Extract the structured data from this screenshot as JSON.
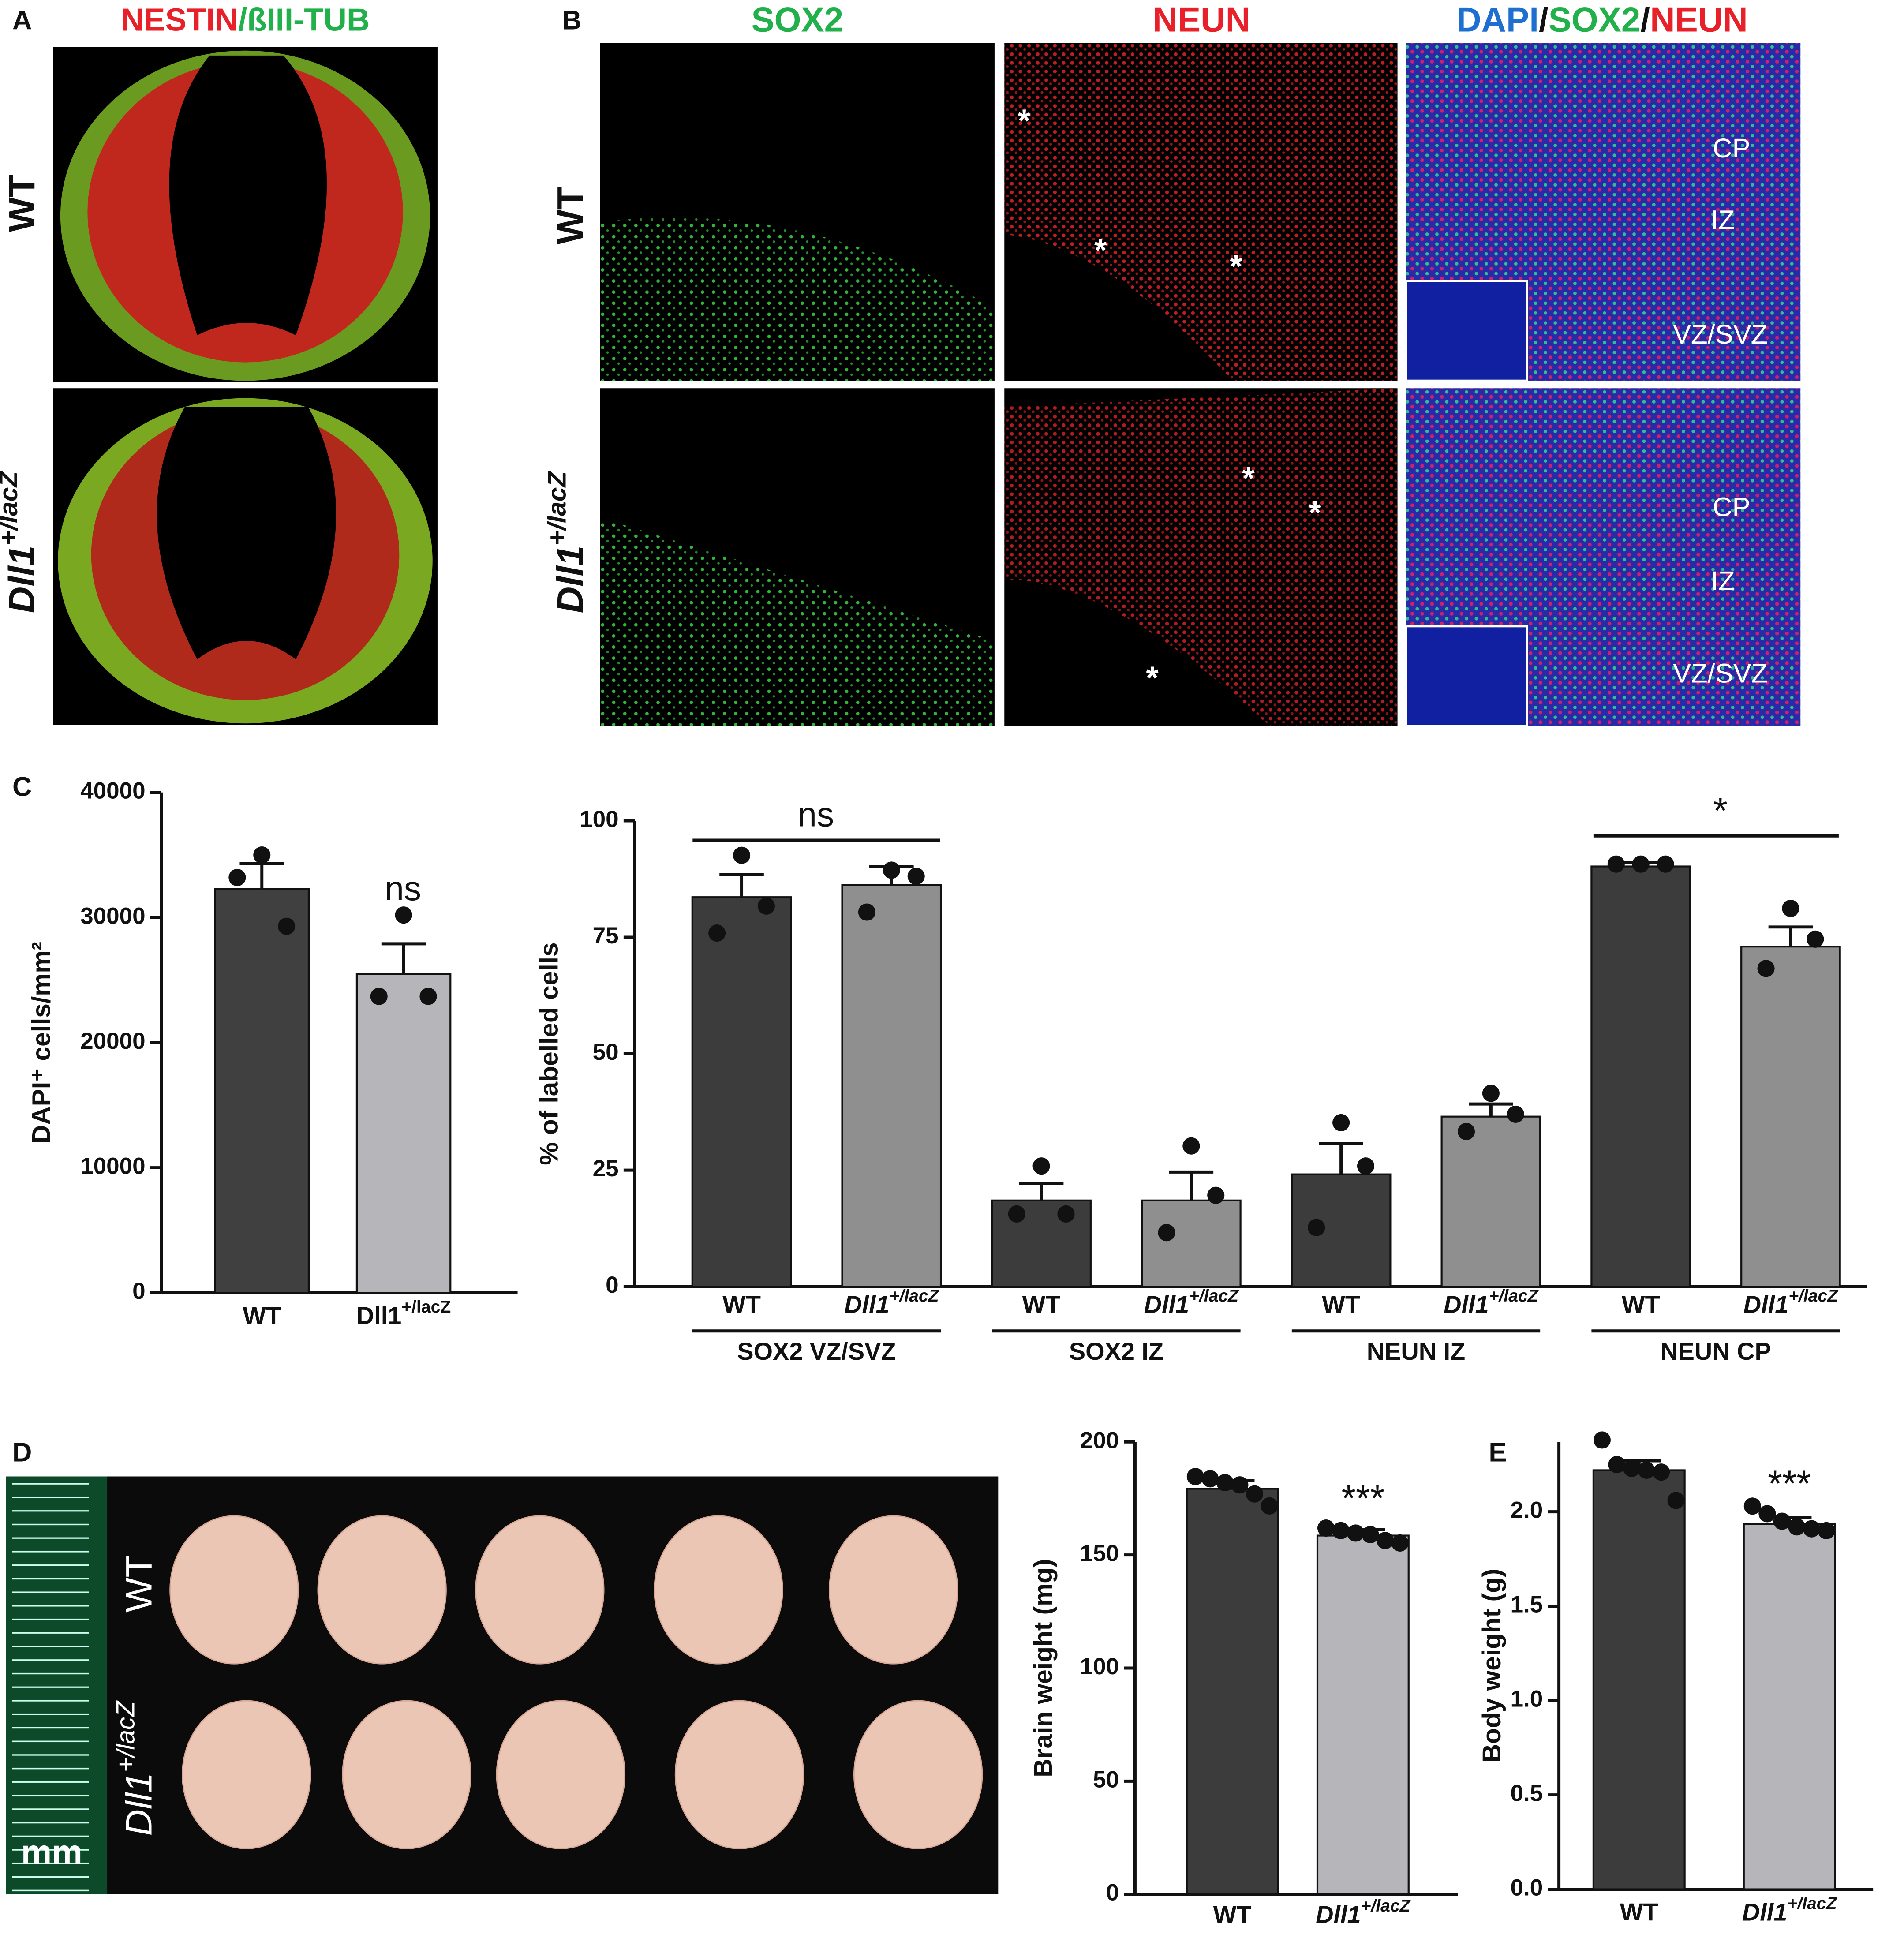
{
  "figure": {
    "panel_a": {
      "letter": "A",
      "title": [
        {
          "text": "NESTIN",
          "color": "#e8202a"
        },
        {
          "text": "/ßIII-TUB",
          "color": "#22b04b"
        }
      ],
      "rows": [
        "WT",
        "Dll1+/lacZ"
      ]
    },
    "panel_b": {
      "letter": "B",
      "columns": [
        [
          {
            "text": "SOX2",
            "color": "#22b04b"
          }
        ],
        [
          {
            "text": "NEUN",
            "color": "#e8202a"
          }
        ],
        [
          {
            "text": "DAPI",
            "color": "#1f6fd0"
          },
          {
            "text": "/",
            "color": "#111111"
          },
          {
            "text": "SOX2",
            "color": "#22b04b"
          },
          {
            "text": "/",
            "color": "#111111"
          },
          {
            "text": "NEUN",
            "color": "#e8202a"
          }
        ]
      ],
      "rows": [
        "WT",
        "Dll1+/lacZ"
      ],
      "zones": [
        "CP",
        "IZ",
        "VZ/SVZ"
      ],
      "marker": "*"
    },
    "panel_c": {
      "letter": "C"
    },
    "panel_d": {
      "letter": "D",
      "rows": [
        "WT",
        "Dll1+/lacZ"
      ],
      "scale": "mm"
    },
    "panel_e": {
      "letter": "E"
    }
  },
  "chart_data": [
    {
      "type": "bar",
      "y_label": "DAPI⁺ cells/mm²",
      "categories": [
        "WT",
        "Dll1+/lacZ"
      ],
      "values": [
        32300,
        25500
      ],
      "errors": [
        2000,
        2400
      ],
      "points": [
        [
          35000,
          33200,
          29300
        ],
        [
          30200,
          23700,
          23700
        ]
      ],
      "colors": [
        "#404040",
        "#b5b5ba"
      ],
      "ylim": [
        0,
        40000
      ],
      "yticks": [
        0,
        10000,
        20000,
        30000,
        40000
      ],
      "annotations": [
        "ns"
      ]
    },
    {
      "type": "bar",
      "y_label": "% of labelled cells",
      "categories": [
        "WT",
        "Dll1+/lacZ",
        "WT",
        "Dll1+/lacZ",
        "WT",
        "Dll1+/lacZ",
        "WT",
        "Dll1+/lacZ"
      ],
      "groups": [
        "SOX2 VZ/SVZ",
        "SOX2 IZ",
        "NEUN IZ",
        "NEUN CP"
      ],
      "values": [
        83.6,
        86.2,
        18.5,
        18.5,
        24.1,
        36.5,
        90.2,
        73.0
      ],
      "errors": [
        4.8,
        4.0,
        3.7,
        6.1,
        6.6,
        2.7,
        0.8,
        4.2
      ],
      "points": [
        [
          92.6,
          75.9,
          81.7
        ],
        [
          89.4,
          80.4,
          88.1
        ],
        [
          25.9,
          15.6,
          15.6
        ],
        [
          30.2,
          11.6,
          19.6
        ],
        [
          35.2,
          12.7,
          25.9
        ],
        [
          41.5,
          33.3,
          37.0
        ],
        [
          90.7,
          90.7,
          90.7
        ],
        [
          81.2,
          68.3,
          74.6
        ]
      ],
      "colors": [
        "#3c3c3c",
        "#8f8f8f",
        "#3c3c3c",
        "#8f8f8f",
        "#3c3c3c",
        "#8f8f8f",
        "#3c3c3c",
        "#8f8f8f"
      ],
      "ylim": [
        0,
        100
      ],
      "yticks": [
        0,
        25,
        50,
        75,
        100
      ],
      "annotations": [
        "ns",
        "*"
      ]
    },
    {
      "type": "bar",
      "y_label": "Brain weight (mg)",
      "categories": [
        "WT",
        "Dll1+/lacZ"
      ],
      "values": [
        179.3,
        158.6
      ],
      "errors": [
        3.5,
        2.7
      ],
      "points": [
        [
          184.7,
          183.7,
          182.0,
          181.0,
          177.0,
          171.7
        ],
        [
          161.9,
          160.8,
          159.7,
          159.0,
          156.4,
          155.3
        ]
      ],
      "colors": [
        "#3c3c3c",
        "#b5b5ba"
      ],
      "ylim": [
        0,
        200
      ],
      "yticks": [
        0,
        50,
        100,
        150,
        200
      ],
      "annotations": [
        "***"
      ]
    },
    {
      "type": "bar",
      "y_label": "Body weight (g)",
      "categories": [
        "WT",
        "Dll1+/lacZ"
      ],
      "values": [
        2.22,
        1.935
      ],
      "errors": [
        0.05,
        0.035
      ],
      "points": [
        [
          2.38,
          2.25,
          2.23,
          2.22,
          2.21,
          2.06
        ],
        [
          2.03,
          1.99,
          1.95,
          1.92,
          1.91,
          1.9
        ]
      ],
      "colors": [
        "#3c3c3c",
        "#b5b5ba"
      ],
      "ylim": [
        0,
        2.37
      ],
      "yticks": [
        {
          "value": 0,
          "label": "0.0"
        },
        0.5,
        {
          "value": 1,
          "label": "1.0"
        },
        1.5,
        {
          "value": 2,
          "label": "2.0"
        }
      ],
      "annotations": [
        "***"
      ]
    }
  ]
}
